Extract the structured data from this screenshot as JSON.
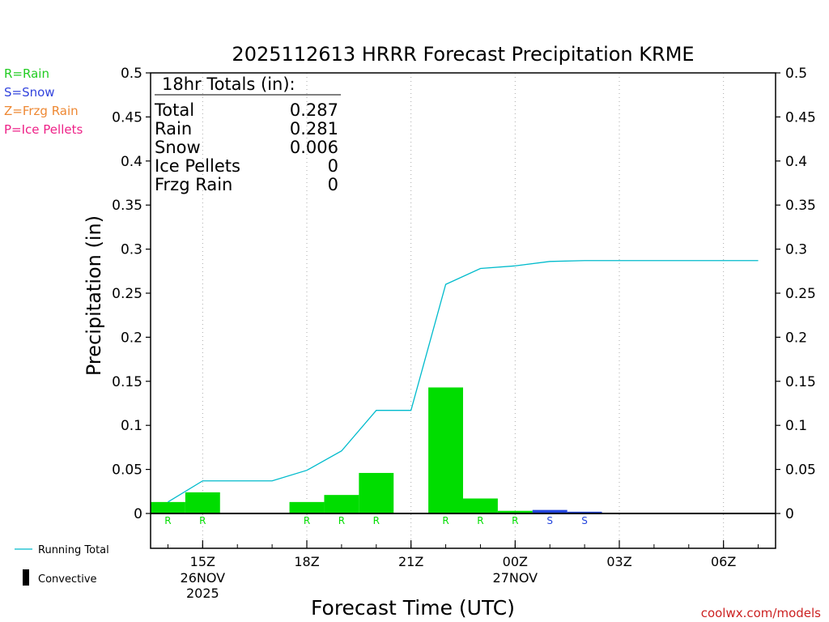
{
  "chart_data": {
    "type": "bar",
    "title": "2025112613 HRRR Forecast Precipitation KRME",
    "xlabel": "Forecast Time (UTC)",
    "ylabel": "Precipitation (in)",
    "ylim": [
      -0.04,
      0.5
    ],
    "yticks": [
      "0.5",
      "0.45",
      "0.4",
      "0.35",
      "0.3",
      "0.25",
      "0.2",
      "0.15",
      "0.1",
      "0.05",
      "0"
    ],
    "ytick_values": [
      0.5,
      0.45,
      0.4,
      0.35,
      0.3,
      0.25,
      0.2,
      0.15,
      0.1,
      0.05,
      0
    ],
    "x_hours": [
      14,
      15,
      16,
      17,
      18,
      19,
      20,
      21,
      22,
      23,
      24,
      25,
      26,
      27,
      28,
      29,
      30,
      31
    ],
    "x_ticks": [
      {
        "hour": 15,
        "label": "15Z",
        "date": "26NOV",
        "year": "2025"
      },
      {
        "hour": 18,
        "label": "18Z",
        "date": "",
        "year": ""
      },
      {
        "hour": 21,
        "label": "21Z",
        "date": "",
        "year": ""
      },
      {
        "hour": 24,
        "label": "00Z",
        "date": "27NOV",
        "year": ""
      },
      {
        "hour": 27,
        "label": "03Z",
        "date": "",
        "year": ""
      },
      {
        "hour": 30,
        "label": "06Z",
        "date": "",
        "year": ""
      }
    ],
    "series": [
      {
        "name": "Rain",
        "color": "#00dd00",
        "bars": [
          {
            "hour": 14,
            "value": 0.013,
            "label": "R"
          },
          {
            "hour": 15,
            "value": 0.024,
            "label": "R"
          },
          {
            "hour": 18,
            "value": 0.013,
            "label": "R"
          },
          {
            "hour": 19,
            "value": 0.021,
            "label": "R"
          },
          {
            "hour": 20,
            "value": 0.046,
            "label": "R"
          },
          {
            "hour": 22,
            "value": 0.143,
            "label": "R"
          },
          {
            "hour": 23,
            "value": 0.017,
            "label": "R"
          },
          {
            "hour": 24,
            "value": 0.003,
            "label": "R"
          }
        ]
      },
      {
        "name": "Snow",
        "color": "#2244dd",
        "bars": [
          {
            "hour": 25,
            "value": 0.004,
            "label": "S"
          },
          {
            "hour": 26,
            "value": 0.002,
            "label": "S"
          }
        ]
      },
      {
        "name": "Running Total",
        "color": "#00bbcc",
        "line": [
          {
            "hour": 14,
            "value": 0.013
          },
          {
            "hour": 15,
            "value": 0.037
          },
          {
            "hour": 16,
            "value": 0.037
          },
          {
            "hour": 17,
            "value": 0.037
          },
          {
            "hour": 18,
            "value": 0.049
          },
          {
            "hour": 19,
            "value": 0.071
          },
          {
            "hour": 20,
            "value": 0.117
          },
          {
            "hour": 21,
            "value": 0.117
          },
          {
            "hour": 22,
            "value": 0.26
          },
          {
            "hour": 23,
            "value": 0.278
          },
          {
            "hour": 24,
            "value": 0.281
          },
          {
            "hour": 25,
            "value": 0.286
          },
          {
            "hour": 26,
            "value": 0.287
          },
          {
            "hour": 27,
            "value": 0.287
          },
          {
            "hour": 28,
            "value": 0.287
          },
          {
            "hour": 29,
            "value": 0.287
          },
          {
            "hour": 30,
            "value": 0.287
          },
          {
            "hour": 31,
            "value": 0.287
          }
        ]
      }
    ],
    "totals_box": {
      "header": "18hr Totals (in):",
      "rows": [
        {
          "label": "Total",
          "value": "0.287"
        },
        {
          "label": "Rain",
          "value": "0.281"
        },
        {
          "label": "Snow",
          "value": "0.006"
        },
        {
          "label": "Ice Pellets",
          "value": "0"
        },
        {
          "label": "Frzg Rain",
          "value": "0"
        }
      ]
    },
    "type_legend": [
      {
        "text": "R=Rain",
        "color": "#22cc22"
      },
      {
        "text": "S=Snow",
        "color": "#3344dd"
      },
      {
        "text": "Z=Frzg Rain",
        "color": "#ee8833"
      },
      {
        "text": "P=Ice Pellets",
        "color": "#ee2288"
      }
    ],
    "bottom_legend": {
      "running_total": "Running Total",
      "convective": "Convective"
    },
    "credit": "coolwx.com/models",
    "credit_color": "#cc2222",
    "grid": "vertical dotted at tick hours"
  }
}
